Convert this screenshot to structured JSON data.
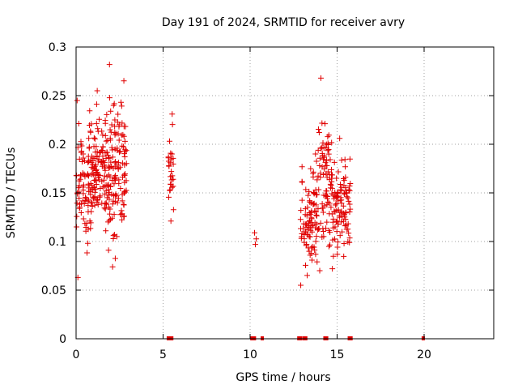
{
  "chart_data": {
    "type": "scatter",
    "title": "Day 191 of 2024, SRMTID for receiver avry",
    "xlabel": "GPS time / hours",
    "ylabel": "SRMTID / TECUs",
    "xlim": [
      0,
      24
    ],
    "ylim": [
      0,
      0.3
    ],
    "x_ticks": [
      0,
      5,
      10,
      15,
      20
    ],
    "x_tick_labels": [
      "0",
      "5",
      "10",
      "15",
      "20"
    ],
    "y_ticks": [
      0,
      0.05,
      0.1,
      0.15,
      0.2,
      0.25,
      0.3
    ],
    "y_tick_labels": [
      "0",
      "0.05",
      "0.1",
      "0.15",
      "0.2",
      "0.25",
      "0.3"
    ],
    "grid": true,
    "marker": "+",
    "color": "#e00000",
    "clusters": [
      {
        "x_range": [
          0.0,
          0.7
        ],
        "count": 60,
        "y_range": [
          0.063,
          0.245
        ]
      },
      {
        "x_range": [
          0.7,
          1.9
        ],
        "count": 150,
        "y_range": [
          0.091,
          0.255
        ]
      },
      {
        "x_range": [
          1.9,
          2.9
        ],
        "count": 120,
        "y_range": [
          0.074,
          0.282
        ]
      },
      {
        "x_range": [
          5.3,
          5.6
        ],
        "count": 28,
        "y_range": [
          0.121,
          0.231
        ]
      },
      {
        "x_range": [
          10.2,
          10.4
        ],
        "count": 3,
        "y_range": [
          0.097,
          0.109
        ]
      },
      {
        "x_range": [
          12.9,
          13.9
        ],
        "count": 95,
        "y_range": [
          0.055,
          0.19
        ]
      },
      {
        "x_range": [
          13.9,
          14.7
        ],
        "count": 85,
        "y_range": [
          0.07,
          0.268
        ]
      },
      {
        "x_range": [
          14.7,
          15.8
        ],
        "count": 100,
        "y_range": [
          0.072,
          0.206
        ]
      }
    ],
    "zero_markers": [
      5.3,
      5.4,
      5.5,
      10.1,
      10.2,
      10.25,
      10.7,
      12.8,
      12.9,
      13.1,
      13.2,
      14.3,
      14.4,
      15.7,
      15.8,
      19.95
    ]
  }
}
